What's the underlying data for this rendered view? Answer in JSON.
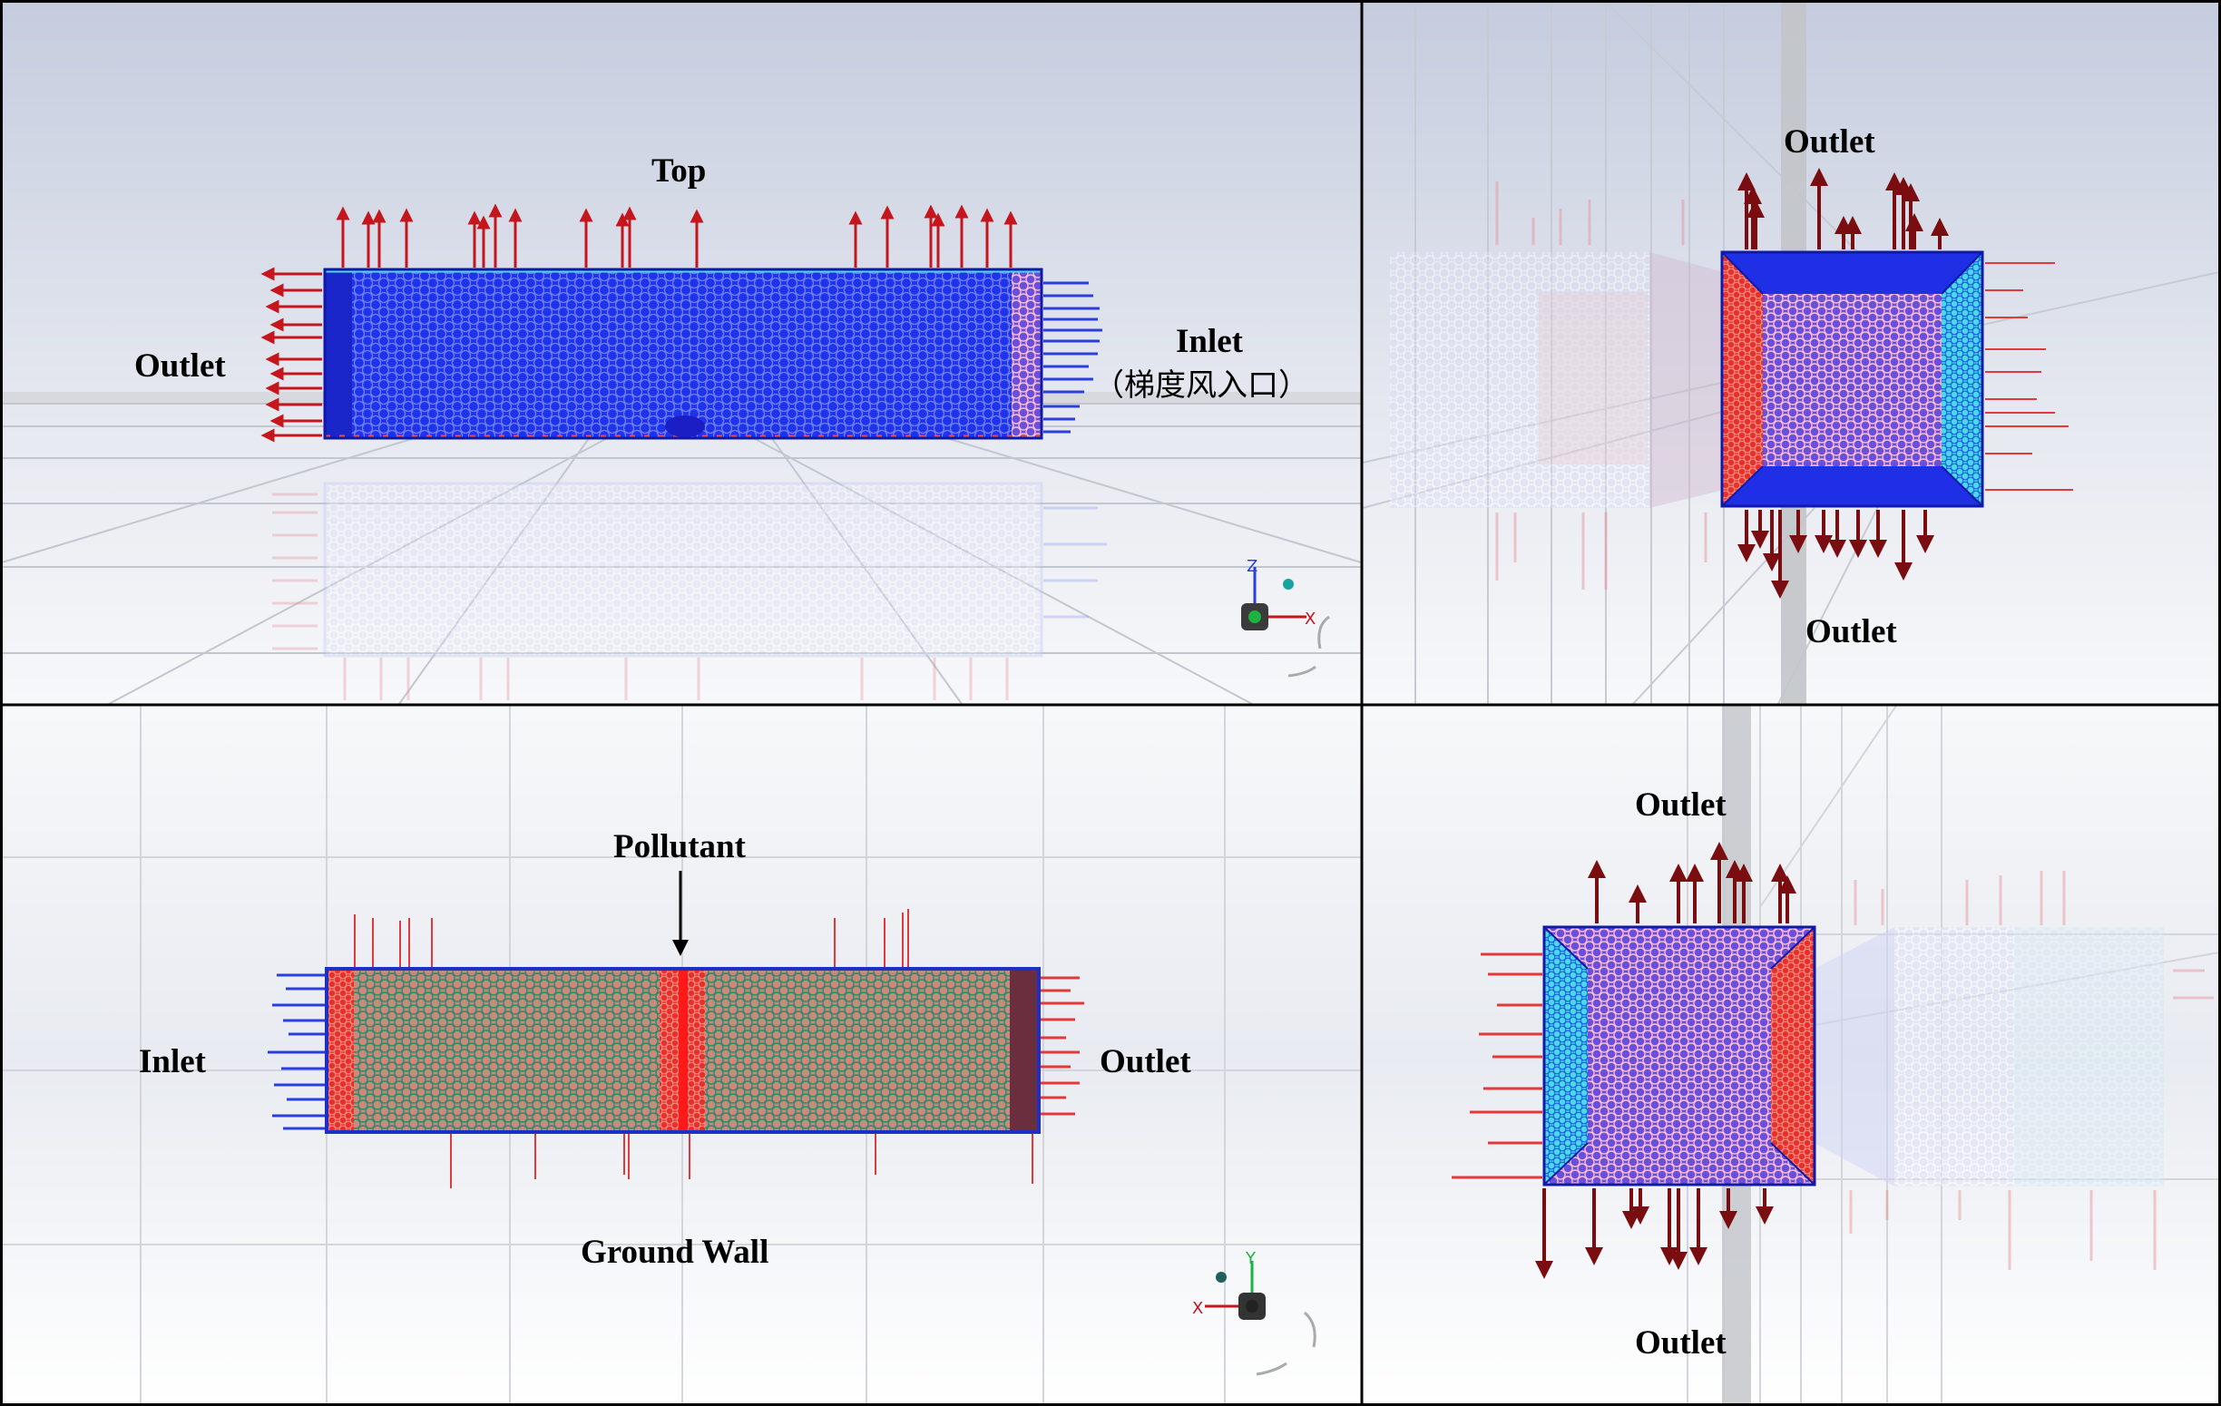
{
  "panels": {
    "top_left": {
      "labels": {
        "top": "Top",
        "outlet": "Outlet",
        "inlet": "Inlet",
        "inlet_note": "（梯度风入口）"
      },
      "triad": {
        "up": "Z",
        "right": "X"
      }
    },
    "top_right": {
      "labels": {
        "outlet_top": "Outlet",
        "outlet_bottom": "Outlet"
      }
    },
    "bottom_left": {
      "labels": {
        "pollutant": "Pollutant",
        "inlet": "Inlet",
        "outlet": "Outlet",
        "ground_wall": "Ground Wall"
      },
      "triad": {
        "up": "Y",
        "left": "X"
      }
    },
    "bottom_right": {
      "labels": {
        "outlet_top": "Outlet",
        "outlet_bottom": "Outlet"
      }
    }
  },
  "colors": {
    "mesh_blue": "#1a2ee8",
    "mesh_red": "#e8302a",
    "arrow_red": "#c4161c",
    "arrow_blue": "#2b3fe0",
    "cyan_edge": "#3fd6e6",
    "bg_top": "#c9cfdf",
    "bg_bottom": "#f4f5f8"
  }
}
